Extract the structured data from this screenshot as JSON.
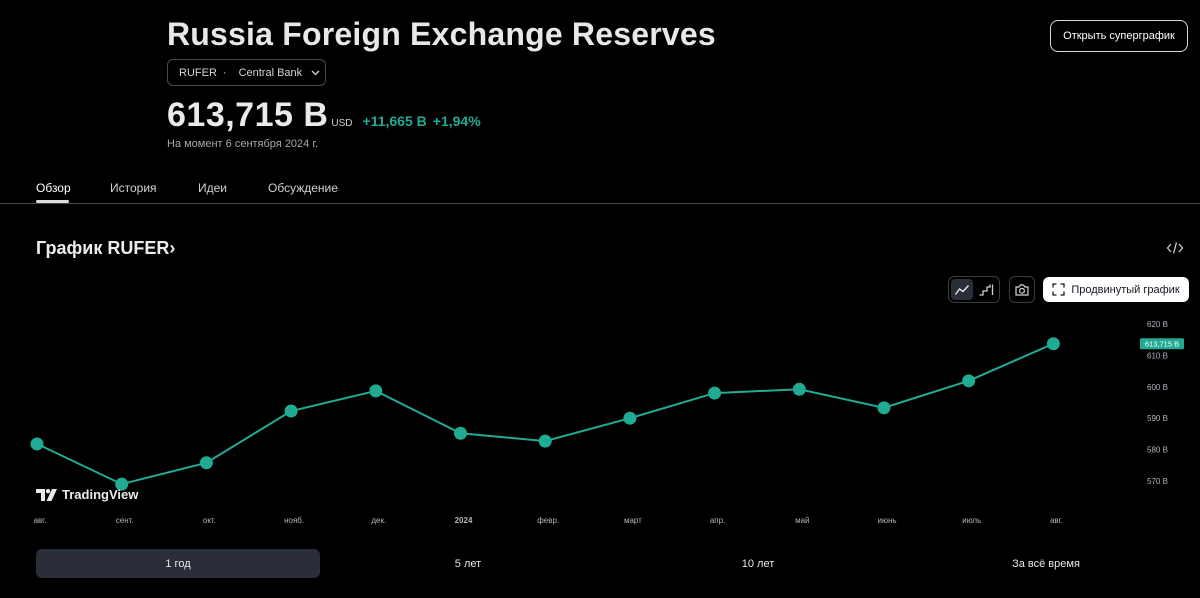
{
  "header": {
    "title": "Russia Foreign Exchange Reserves",
    "super_chart_button": "Открыть суперграфик",
    "symbol": "RUFER",
    "symbol_separator": "·",
    "source": "Central Bank",
    "value": "613,715 B",
    "unit": "USD",
    "change": "+11,665 B",
    "change_pct": "+1,94%",
    "as_of": "На момент 6 сентября 2024 г."
  },
  "tabs": [
    "Обзор",
    "История",
    "Идеи",
    "Обсуждение"
  ],
  "chart_section": {
    "heading": "График RUFER",
    "heading_chevron": "›",
    "advanced_button": "Продвинутый график",
    "brand": "TradingView",
    "icons": [
      "code-embed-icon",
      "line-chart-icon",
      "step-chart-icon",
      "camera-icon",
      "fullscreen-icon"
    ]
  },
  "chart_data": {
    "type": "line",
    "x": [
      "авг.",
      "сент.",
      "окт.",
      "нояб.",
      "дек.",
      "2024",
      "февр.",
      "март",
      "апр.",
      "май",
      "июнь",
      "июль",
      "авг."
    ],
    "series": [
      {
        "values": [
          581.8,
          569.0,
          575.8,
          592.3,
          598.7,
          585.2,
          582.7,
          590.0,
          598.0,
          599.2,
          593.3,
          601.9,
          613.715
        ]
      }
    ],
    "y_ticks": [
      "620 B",
      "610 B",
      "600 B",
      "590 B",
      "580 B",
      "570 B"
    ],
    "y_tick_values": [
      620,
      610,
      600,
      590,
      580,
      570
    ],
    "ylim": [
      566.5,
      624
    ],
    "last_value_label": "613,715 B",
    "line_color": "#22ab94",
    "grid": false
  },
  "ranges": [
    "1 год",
    "5 лет",
    "10 лет",
    "За всё время"
  ],
  "colors": {
    "accent": "#22ab94",
    "background": "#000000",
    "active_bg": "#2a2e39"
  }
}
